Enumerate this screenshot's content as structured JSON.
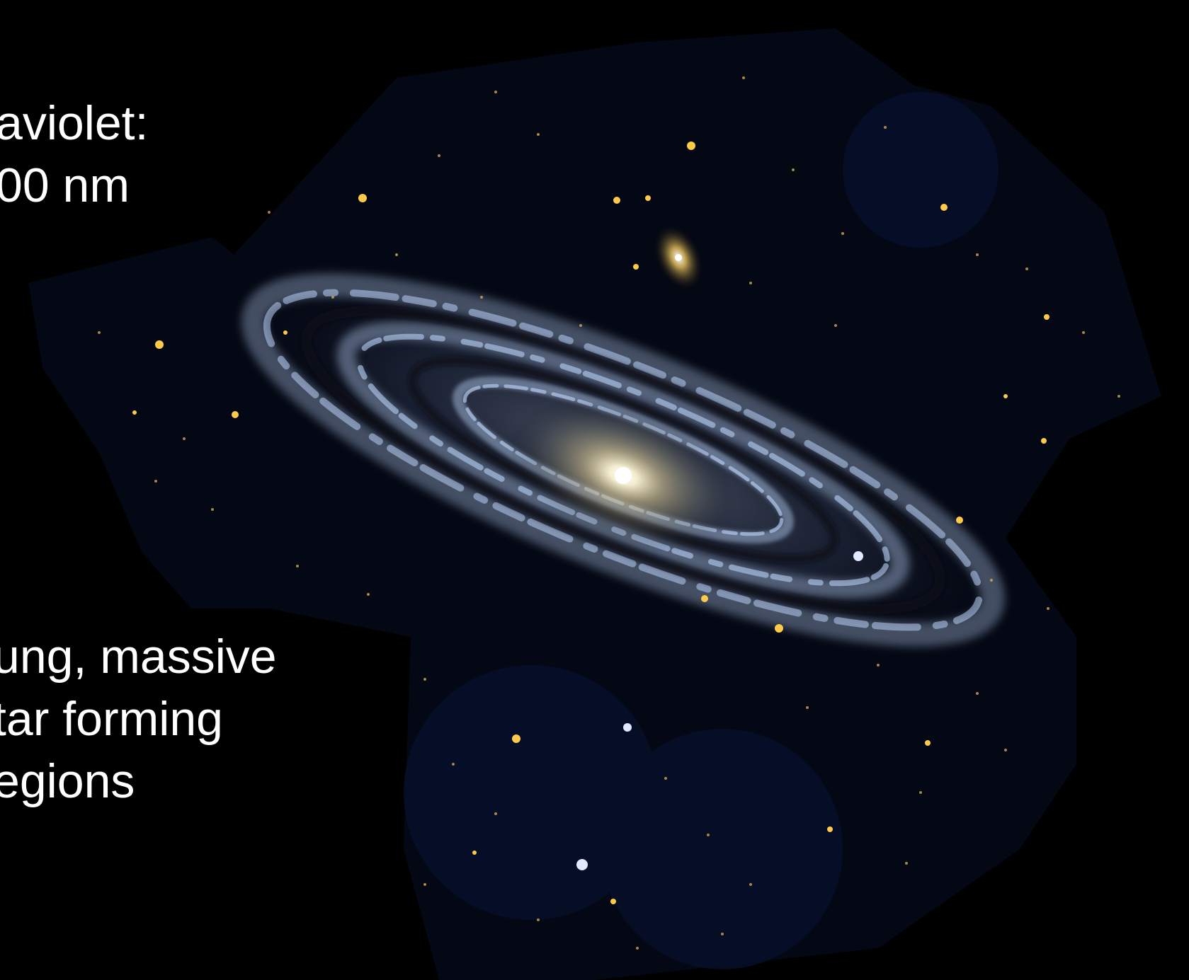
{
  "slide": {
    "band": {
      "line1": "aviolet:",
      "line2": "00 nm"
    },
    "description": {
      "line1": "ung, massive",
      "line2": "tar forming",
      "line3": "egions"
    }
  },
  "colors": {
    "background": "#000000",
    "text": "#ffffff",
    "star_yellow": "#ffc94a",
    "arm_blue": "#b8d0f5",
    "core": "#fff4d0"
  }
}
